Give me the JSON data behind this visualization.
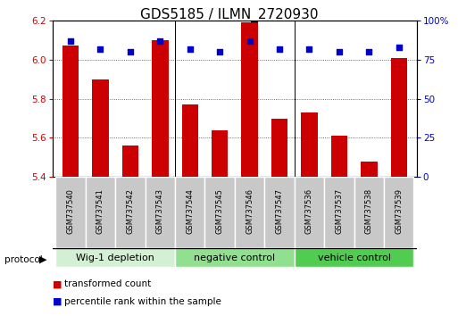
{
  "title": "GDS5185 / ILMN_2720930",
  "samples": [
    "GSM737540",
    "GSM737541",
    "GSM737542",
    "GSM737543",
    "GSM737544",
    "GSM737545",
    "GSM737546",
    "GSM737547",
    "GSM737536",
    "GSM737537",
    "GSM737538",
    "GSM737539"
  ],
  "transformed_count": [
    6.07,
    5.9,
    5.56,
    6.1,
    5.77,
    5.64,
    6.19,
    5.7,
    5.73,
    5.61,
    5.48,
    6.01
  ],
  "percentile_rank": [
    87,
    82,
    80,
    87,
    82,
    80,
    87,
    82,
    82,
    80,
    80,
    83
  ],
  "groups": [
    {
      "label": "Wig-1 depletion",
      "start": 0,
      "end": 4,
      "color": "#d4f0d4"
    },
    {
      "label": "negative control",
      "start": 4,
      "end": 8,
      "color": "#90e090"
    },
    {
      "label": "vehicle control",
      "start": 8,
      "end": 12,
      "color": "#50cc50"
    }
  ],
  "bar_color": "#cc0000",
  "dot_color": "#0000cc",
  "ylim_left": [
    5.4,
    6.2
  ],
  "ylim_right": [
    0,
    100
  ],
  "yticks_left": [
    5.4,
    5.6,
    5.8,
    6.0,
    6.2
  ],
  "yticks_right": [
    0,
    25,
    50,
    75,
    100
  ],
  "bar_width": 0.55,
  "title_fontsize": 11,
  "tick_fontsize": 7.5,
  "label_fontsize": 7.5,
  "sample_cell_color": "#c8c8c8",
  "group_boundaries": [
    3.5,
    7.5
  ]
}
